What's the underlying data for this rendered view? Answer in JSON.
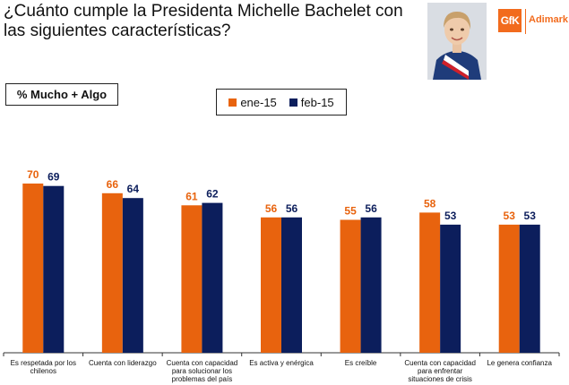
{
  "title": "¿Cuánto cumple la Presidenta Michelle Bachelet con las siguientes características?",
  "logo": {
    "brand": "GfK",
    "name": "Adimark"
  },
  "photo_alt": "Michelle Bachelet",
  "colors": {
    "ene": "#e8630e",
    "feb": "#0c1e5c"
  },
  "chart_data": {
    "type": "bar",
    "title": "% Mucho + Algo",
    "categories": [
      "Es respetada por los chilenos",
      "Cuenta con liderazgo",
      "Cuenta con capacidad para solucionar los problemas del país",
      "Es activa y enérgica",
      "Es creíble",
      "Cuenta con capacidad para enfrentar situaciones de crisis",
      "Le genera confianza"
    ],
    "series": [
      {
        "name": "ene-15",
        "values": [
          70,
          66,
          61,
          56,
          55,
          58,
          53
        ]
      },
      {
        "name": "feb-15",
        "values": [
          69,
          64,
          62,
          56,
          56,
          53,
          53
        ]
      }
    ],
    "ylim": [
      0,
      100
    ],
    "grid": false,
    "legend": "top-center",
    "xlabel": "",
    "ylabel": ""
  }
}
